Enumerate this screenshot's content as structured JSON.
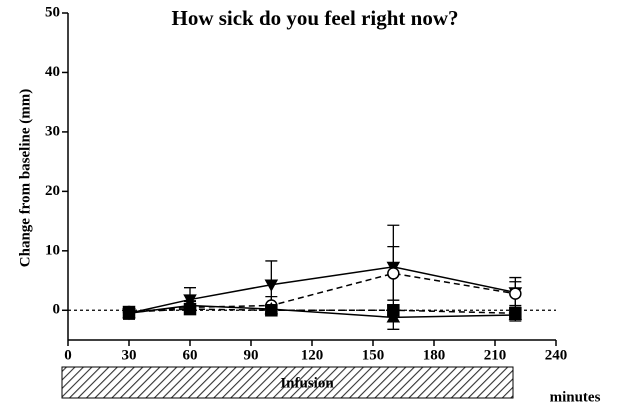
{
  "chart_data": {
    "type": "line",
    "title": "How sick do you feel right now?",
    "ylabel": "Change from baseline (mm)",
    "xlabel": "minutes",
    "annotation": "Infusion",
    "x": [
      30,
      60,
      100,
      160,
      220
    ],
    "series": [
      {
        "color": "#000000",
        "marker": "triangle-down",
        "dashed": false,
        "values": [
          -0.5,
          1.8,
          4.3,
          7.3,
          3.0
        ],
        "errors": [
          1.0,
          2.0,
          4.0,
          7.0,
          2.5
        ]
      },
      {
        "color": "#000000",
        "marker": "circle-open",
        "dashed": true,
        "values": [
          -0.3,
          0.5,
          0.8,
          6.2,
          2.8
        ],
        "errors": [
          0.8,
          1.0,
          1.5,
          4.5,
          2.0
        ]
      },
      {
        "color": "#000000",
        "marker": "triangle-up",
        "dashed": false,
        "values": [
          -0.5,
          0.8,
          0.2,
          -1.2,
          -0.8
        ],
        "errors": [
          0.8,
          0.8,
          0.5,
          2.0,
          1.0
        ]
      },
      {
        "color": "#000000",
        "marker": "square",
        "dashed": true,
        "values": [
          -0.3,
          0.2,
          0.0,
          0.0,
          -0.5
        ],
        "errors": [
          0.5,
          0.5,
          0.4,
          0.8,
          0.6
        ]
      }
    ],
    "xlim": [
      0,
      240
    ],
    "xticks": [
      0,
      30,
      60,
      90,
      120,
      150,
      180,
      210,
      240
    ],
    "ylim": [
      -5,
      50
    ],
    "yticks": [
      0,
      10,
      20,
      30,
      40,
      50
    ],
    "reference_line": 0
  }
}
